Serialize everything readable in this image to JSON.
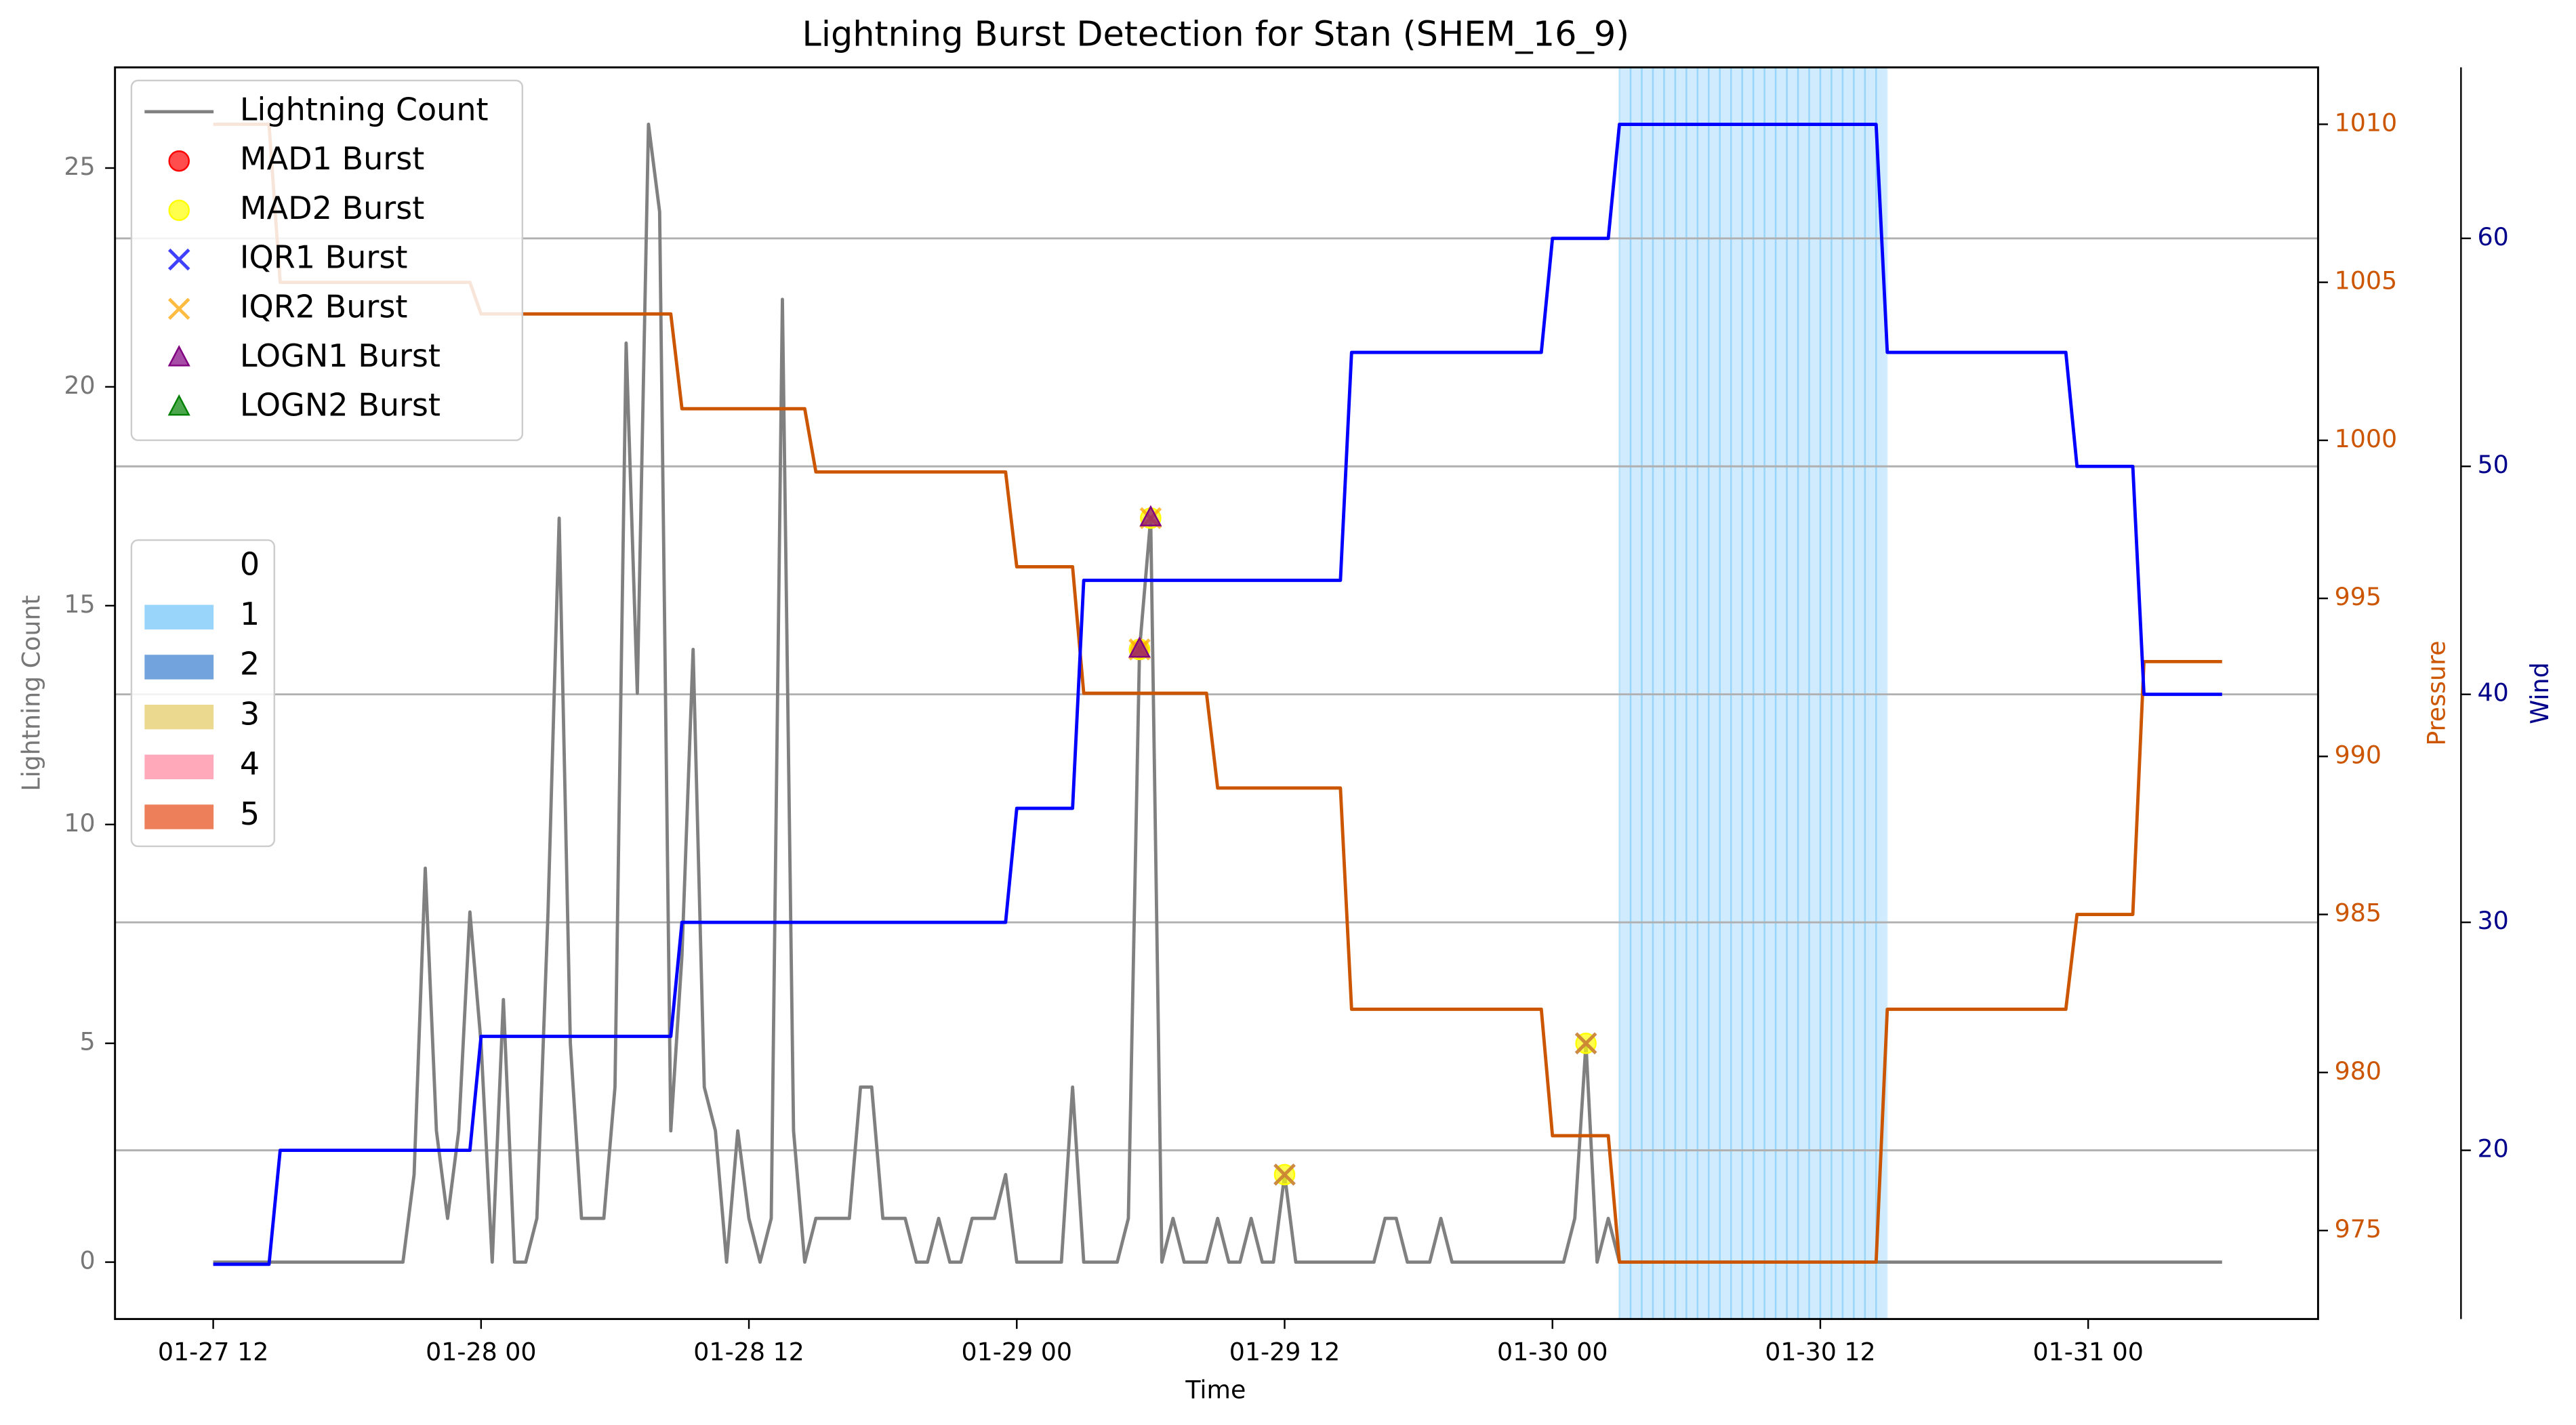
{
  "chart_data": {
    "type": "line",
    "title": "Lightning Burst Detection for Stan (SHEM_16_9)",
    "x_label": "Time",
    "y_label": "Lightning Count",
    "y2_label": "Pressure",
    "y3_label": "Wind",
    "x": [
      "01-27 12:00",
      "01-27 12:30",
      "01-27 13:00",
      "01-27 13:30",
      "01-27 14:00",
      "01-27 14:30",
      "01-27 15:00",
      "01-27 15:30",
      "01-27 16:00",
      "01-27 16:30",
      "01-27 17:00",
      "01-27 17:30",
      "01-27 18:00",
      "01-27 18:30",
      "01-27 19:00",
      "01-27 19:30",
      "01-27 20:00",
      "01-27 20:30",
      "01-27 21:00",
      "01-27 21:30",
      "01-27 22:00",
      "01-27 22:30",
      "01-27 23:00",
      "01-27 23:30",
      "01-28 00:00",
      "01-28 00:30",
      "01-28 01:00",
      "01-28 01:30",
      "01-28 02:00",
      "01-28 02:30",
      "01-28 03:00",
      "01-28 03:30",
      "01-28 04:00",
      "01-28 04:30",
      "01-28 05:00",
      "01-28 05:30",
      "01-28 06:00",
      "01-28 06:30",
      "01-28 07:00",
      "01-28 07:30",
      "01-28 08:00",
      "01-28 08:30",
      "01-28 09:00",
      "01-28 09:30",
      "01-28 10:00",
      "01-28 10:30",
      "01-28 11:00",
      "01-28 11:30",
      "01-28 12:00",
      "01-28 12:30",
      "01-28 13:00",
      "01-28 13:30",
      "01-28 14:00",
      "01-28 14:30",
      "01-28 15:00",
      "01-28 15:30",
      "01-28 16:00",
      "01-28 16:30",
      "01-28 17:00",
      "01-28 17:30",
      "01-28 18:00",
      "01-28 18:30",
      "01-28 19:00",
      "01-28 19:30",
      "01-28 20:00",
      "01-28 20:30",
      "01-28 21:00",
      "01-28 21:30",
      "01-28 22:00",
      "01-28 22:30",
      "01-28 23:00",
      "01-28 23:30",
      "01-29 00:00",
      "01-29 00:30",
      "01-29 01:00",
      "01-29 01:30",
      "01-29 02:00",
      "01-29 02:30",
      "01-29 03:00",
      "01-29 03:30",
      "01-29 04:00",
      "01-29 04:30",
      "01-29 05:00",
      "01-29 05:30",
      "01-29 06:00",
      "01-29 06:30",
      "01-29 07:00",
      "01-29 07:30",
      "01-29 08:00",
      "01-29 08:30",
      "01-29 09:00",
      "01-29 09:30",
      "01-29 10:00",
      "01-29 10:30",
      "01-29 11:00",
      "01-29 11:30",
      "01-29 12:00",
      "01-29 12:30",
      "01-29 13:00",
      "01-29 13:30",
      "01-29 14:00",
      "01-29 14:30",
      "01-29 15:00",
      "01-29 15:30",
      "01-29 16:00",
      "01-29 16:30",
      "01-29 17:00",
      "01-29 17:30",
      "01-29 18:00",
      "01-29 18:30",
      "01-29 19:00",
      "01-29 19:30",
      "01-29 20:00",
      "01-29 20:30",
      "01-29 21:00",
      "01-29 21:30",
      "01-29 22:00",
      "01-29 22:30",
      "01-29 23:00",
      "01-29 23:30",
      "01-30 00:00",
      "01-30 00:30",
      "01-30 01:00",
      "01-30 01:30",
      "01-30 02:00",
      "01-30 02:30",
      "01-30 03:00",
      "01-30 03:30",
      "01-30 04:00",
      "01-30 04:30",
      "01-30 05:00",
      "01-30 05:30",
      "01-30 06:00",
      "01-30 06:30",
      "01-30 07:00",
      "01-30 07:30",
      "01-30 08:00",
      "01-30 08:30",
      "01-30 09:00",
      "01-30 09:30",
      "01-30 10:00",
      "01-30 10:30",
      "01-30 11:00",
      "01-30 11:30",
      "01-30 12:00",
      "01-30 12:30",
      "01-30 13:00",
      "01-30 13:30",
      "01-30 14:00",
      "01-30 14:30",
      "01-30 15:00",
      "01-30 15:30",
      "01-30 16:00",
      "01-30 16:30",
      "01-30 17:00",
      "01-30 17:30",
      "01-30 18:00",
      "01-30 18:30",
      "01-30 19:00",
      "01-30 19:30",
      "01-30 20:00",
      "01-30 20:30",
      "01-30 21:00",
      "01-30 21:30",
      "01-30 22:00",
      "01-30 22:30",
      "01-30 23:00",
      "01-30 23:30",
      "01-31 00:00",
      "01-31 00:30",
      "01-31 01:00",
      "01-31 01:30",
      "01-31 02:00",
      "01-31 02:30",
      "01-31 03:00",
      "01-31 03:30",
      "01-31 04:00",
      "01-31 04:30",
      "01-31 05:00",
      "01-31 05:30",
      "01-31 06:00"
    ],
    "xlim": [
      "01-27 07:36",
      "01-31 10:18"
    ],
    "xticks": [
      "01-27 12",
      "01-28 00",
      "01-28 12",
      "01-29 00",
      "01-29 12",
      "01-30 00",
      "01-30 12",
      "01-31 00"
    ],
    "ylim": [
      -1.3,
      27.3
    ],
    "yticks": [
      0,
      5,
      10,
      15,
      20,
      25
    ],
    "y2lim": [
      972.2,
      1011.8
    ],
    "y2ticks": [
      975,
      980,
      985,
      990,
      995,
      1000,
      1005,
      1010
    ],
    "y3lim": [
      12.6,
      67.5
    ],
    "y3ticks": [
      20,
      30,
      40,
      50,
      60
    ],
    "grid": "y3",
    "legend": "upper left",
    "class_legend": "center left",
    "series": [
      {
        "name": "Lightning Count",
        "color": "#808080",
        "axis": "y",
        "values": [
          0,
          0,
          0,
          0,
          0,
          0,
          0,
          0,
          0,
          0,
          0,
          0,
          0,
          0,
          0,
          0,
          0,
          0,
          2,
          9,
          3,
          1,
          3,
          8,
          5,
          0,
          6,
          0,
          0,
          1,
          8,
          17,
          5,
          1,
          1,
          1,
          4,
          21,
          13,
          26,
          24,
          3,
          7,
          14,
          4,
          3,
          0,
          3,
          1,
          0,
          1,
          22,
          3,
          0,
          1,
          1,
          1,
          1,
          4,
          4,
          1,
          1,
          1,
          0,
          0,
          1,
          0,
          0,
          1,
          1,
          1,
          2,
          0,
          0,
          0,
          0,
          0,
          4,
          0,
          0,
          0,
          0,
          1,
          14,
          17,
          0,
          1,
          0,
          0,
          0,
          1,
          0,
          0,
          1,
          0,
          0,
          2,
          0,
          0,
          0,
          0,
          0,
          0,
          0,
          0,
          1,
          1,
          0,
          0,
          0,
          1,
          0,
          0,
          0,
          0,
          0,
          0,
          0,
          0,
          0,
          0,
          0,
          1,
          5,
          0,
          1,
          0,
          0,
          0,
          0,
          0,
          0,
          0,
          0,
          0,
          0,
          0,
          0,
          0,
          0,
          0,
          0,
          0,
          0,
          0,
          0,
          0,
          0,
          0,
          0,
          0,
          0,
          0,
          0,
          0,
          0,
          0,
          0,
          0,
          0,
          0,
          0,
          0,
          0,
          0,
          0,
          0,
          0,
          0,
          0,
          0,
          0,
          0,
          0,
          0,
          0,
          0,
          0,
          0,
          0,
          0
        ]
      },
      {
        "color": "#cc5500",
        "axis": "y2",
        "values": [
          1010,
          1010,
          1010,
          1010,
          1010,
          1010,
          1005,
          1005,
          1005,
          1005,
          1005,
          1005,
          1005,
          1005,
          1005,
          1005,
          1005,
          1005,
          1005,
          1005,
          1005,
          1005,
          1005,
          1005,
          1004,
          1004,
          1004,
          1004,
          1004,
          1004,
          1004,
          1004,
          1004,
          1004,
          1004,
          1004,
          1004,
          1004,
          1004,
          1004,
          1004,
          1004,
          1001,
          1001,
          1001,
          1001,
          1001,
          1001,
          1001,
          1001,
          1001,
          1001,
          1001,
          1001,
          999,
          999,
          999,
          999,
          999,
          999,
          999,
          999,
          999,
          999,
          999,
          999,
          999,
          999,
          999,
          999,
          999,
          999,
          996,
          996,
          996,
          996,
          996,
          996,
          992,
          992,
          992,
          992,
          992,
          992,
          992,
          992,
          992,
          992,
          992,
          992,
          989,
          989,
          989,
          989,
          989,
          989,
          989,
          989,
          989,
          989,
          989,
          989,
          982,
          982,
          982,
          982,
          982,
          982,
          982,
          982,
          982,
          982,
          982,
          982,
          982,
          982,
          982,
          982,
          982,
          982,
          978,
          978,
          978,
          978,
          978,
          978,
          974,
          974,
          974,
          974,
          974,
          974,
          974,
          974,
          974,
          974,
          974,
          974,
          974,
          974,
          974,
          974,
          974,
          974,
          974,
          974,
          974,
          974,
          974,
          974,
          982,
          982,
          982,
          982,
          982,
          982,
          982,
          982,
          982,
          982,
          982,
          982,
          982,
          982,
          982,
          982,
          982,
          985,
          985,
          985,
          985,
          985,
          985,
          993,
          993,
          993,
          993,
          993,
          993,
          993,
          993
        ]
      },
      {
        "color": "#0000ff",
        "axis": "y3",
        "values": [
          15,
          15,
          15,
          15,
          15,
          15,
          20,
          20,
          20,
          20,
          20,
          20,
          20,
          20,
          20,
          20,
          20,
          20,
          20,
          20,
          20,
          20,
          20,
          20,
          25,
          25,
          25,
          25,
          25,
          25,
          25,
          25,
          25,
          25,
          25,
          25,
          25,
          25,
          25,
          25,
          25,
          25,
          30,
          30,
          30,
          30,
          30,
          30,
          30,
          30,
          30,
          30,
          30,
          30,
          30,
          30,
          30,
          30,
          30,
          30,
          30,
          30,
          30,
          30,
          30,
          30,
          30,
          30,
          30,
          30,
          30,
          30,
          35,
          35,
          35,
          35,
          35,
          35,
          45,
          45,
          45,
          45,
          45,
          45,
          45,
          45,
          45,
          45,
          45,
          45,
          45,
          45,
          45,
          45,
          45,
          45,
          45,
          45,
          45,
          45,
          45,
          45,
          55,
          55,
          55,
          55,
          55,
          55,
          55,
          55,
          55,
          55,
          55,
          55,
          55,
          55,
          55,
          55,
          55,
          55,
          60,
          60,
          60,
          60,
          60,
          60,
          65,
          65,
          65,
          65,
          65,
          65,
          65,
          65,
          65,
          65,
          65,
          65,
          65,
          65,
          65,
          65,
          65,
          65,
          65,
          65,
          65,
          65,
          65,
          65,
          55,
          55,
          55,
          55,
          55,
          55,
          55,
          55,
          55,
          55,
          55,
          55,
          55,
          55,
          55,
          55,
          55,
          50,
          50,
          50,
          50,
          50,
          50,
          40,
          40,
          40,
          40,
          40,
          40,
          40,
          40
        ]
      }
    ],
    "bursts": [
      {
        "name": "MAD1 Burst",
        "color": "#ff0000",
        "marker": "o",
        "x": [
          "01-29 05:30"
        ],
        "values": [
          14
        ]
      },
      {
        "name": "MAD2 Burst",
        "color": "#ffff00",
        "marker": "o",
        "x": [
          "01-29 05:30",
          "01-29 06:00",
          "01-29 12:00",
          "01-30 01:30"
        ],
        "values": [
          14,
          17,
          2,
          5
        ]
      },
      {
        "name": "IQR1 Burst",
        "color": "#0000ff",
        "marker": "x",
        "x": [
          "01-29 12:00",
          "01-30 01:30"
        ],
        "values": [
          2,
          5
        ]
      },
      {
        "name": "IQR2 Burst",
        "color": "#ffa500",
        "marker": "x",
        "x": [
          "01-29 05:30",
          "01-29 06:00",
          "01-29 12:00",
          "01-30 01:30"
        ],
        "values": [
          14,
          17,
          2,
          5
        ]
      },
      {
        "name": "LOGN1 Burst",
        "color": "#800080",
        "marker": "^",
        "x": [
          "01-29 05:30",
          "01-29 06:00"
        ],
        "values": [
          14,
          17
        ]
      },
      {
        "name": "LOGN2 Burst",
        "color": "#008000",
        "marker": "^",
        "x": [],
        "values": []
      }
    ],
    "classes": [
      {
        "label": "0",
        "color": "#ffffff"
      },
      {
        "label": "1",
        "color": "#87cefa"
      },
      {
        "label": "2",
        "color": "#5b93d6"
      },
      {
        "label": "3",
        "color": "#e6d27a"
      },
      {
        "label": "4",
        "color": "#ff9aaf"
      },
      {
        "label": "5",
        "color": "#ea6a3e"
      }
    ],
    "shading_class": [
      0,
      0,
      0,
      0,
      0,
      0,
      0,
      0,
      0,
      0,
      0,
      0,
      0,
      0,
      0,
      0,
      0,
      0,
      0,
      0,
      0,
      0,
      0,
      0,
      0,
      0,
      0,
      0,
      0,
      0,
      0,
      0,
      0,
      0,
      0,
      0,
      0,
      0,
      0,
      0,
      0,
      0,
      0,
      0,
      0,
      0,
      0,
      0,
      0,
      0,
      0,
      0,
      0,
      0,
      0,
      0,
      0,
      0,
      0,
      0,
      0,
      0,
      0,
      0,
      0,
      0,
      0,
      0,
      0,
      0,
      0,
      0,
      0,
      0,
      0,
      0,
      0,
      0,
      0,
      0,
      0,
      0,
      0,
      0,
      0,
      0,
      0,
      0,
      0,
      0,
      0,
      0,
      0,
      0,
      0,
      0,
      0,
      0,
      0,
      0,
      0,
      0,
      0,
      0,
      0,
      0,
      0,
      0,
      0,
      0,
      0,
      0,
      0,
      0,
      0,
      0,
      0,
      0,
      0,
      0,
      0,
      0,
      0,
      0,
      0,
      0,
      1,
      1,
      1,
      1,
      1,
      1,
      1,
      1,
      1,
      1,
      1,
      1,
      1,
      1,
      1,
      1,
      1,
      1,
      1,
      1,
      1,
      1,
      1,
      1,
      0,
      0,
      0,
      0,
      0,
      0,
      0,
      0,
      0,
      0,
      0,
      0,
      0,
      0,
      0,
      0,
      0,
      0,
      0,
      0,
      0,
      0,
      0,
      0,
      0,
      0,
      0,
      0,
      0,
      0,
      0
    ]
  }
}
